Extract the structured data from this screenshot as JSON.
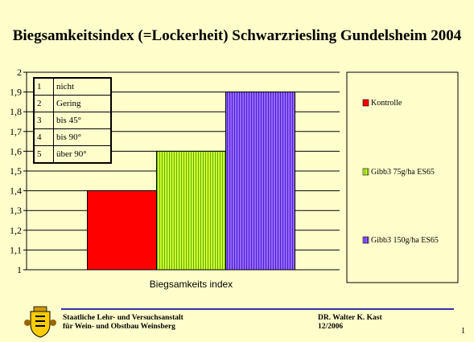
{
  "title": "Biegsamkeitsindex (=Lockerheit) Schwarzriesling Gundelsheim 2004",
  "scale_table": [
    {
      "num": "1",
      "text": "nicht"
    },
    {
      "num": "2",
      "text": "Gering"
    },
    {
      "num": "3",
      "text": "bis 45°"
    },
    {
      "num": "4",
      "text": "bis 90°"
    },
    {
      "num": "5",
      "text": "über 90°"
    }
  ],
  "chart_data": {
    "type": "bar",
    "categories": [
      "Biegsamkeits index"
    ],
    "series": [
      {
        "name": "Kontrolle",
        "values": [
          1.4
        ],
        "color": "#ff0000"
      },
      {
        "name": "Gibb3 75g/ha ES65",
        "values": [
          1.6
        ],
        "color": "#ccff33"
      },
      {
        "name": "Gibb3 150g/ha ES65",
        "values": [
          1.9
        ],
        "color": "#9966ff"
      }
    ],
    "ylim": [
      1,
      2
    ],
    "yticks": [
      "1",
      "1,1",
      "1,2",
      "1,3",
      "1,4",
      "1,5",
      "1,6",
      "1,7",
      "1,8",
      "1,9",
      "2"
    ],
    "title": "Biegsamkeitsindex (=Lockerheit) Schwarzriesling Gundelsheim 2004",
    "xlabel": "",
    "ylabel": "",
    "grid": true,
    "legend": "right"
  },
  "footer": {
    "institute_line1": "Staatliche Lehr- und Versuchsanstalt",
    "institute_line2": "für Wein- und Obstbau Weinsberg",
    "author": "DR. Walter K. Kast",
    "date": "12/2006"
  },
  "page_number": "1"
}
